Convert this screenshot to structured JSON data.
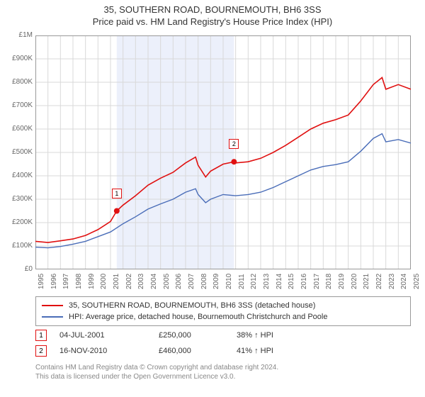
{
  "title_line1": "35, SOUTHERN ROAD, BOURNEMOUTH, BH6 3SS",
  "title_line2": "Price paid vs. HM Land Registry's House Price Index (HPI)",
  "chart": {
    "type": "line",
    "background_color": "#ffffff",
    "grid_color": "#d9d9d9",
    "highlight_band_color": "#ecf0fb",
    "highlight_band_x": {
      "start": 2001.5,
      "end": 2010.87
    },
    "xlim": [
      1995,
      2025
    ],
    "ylim": [
      0,
      1000000
    ],
    "x_ticks": [
      1995,
      1996,
      1997,
      1998,
      1999,
      2000,
      2001,
      2002,
      2003,
      2004,
      2005,
      2006,
      2007,
      2008,
      2009,
      2010,
      2011,
      2012,
      2013,
      2014,
      2015,
      2016,
      2017,
      2018,
      2019,
      2020,
      2021,
      2022,
      2023,
      2024,
      2025
    ],
    "y_ticks": [
      0,
      100000,
      200000,
      300000,
      400000,
      500000,
      600000,
      700000,
      800000,
      900000,
      1000000
    ],
    "y_tick_labels": [
      "£0",
      "£100K",
      "£200K",
      "£300K",
      "£400K",
      "£500K",
      "£600K",
      "£700K",
      "£800K",
      "£900K",
      "£1M"
    ],
    "series": [
      {
        "name": "35, SOUTHERN ROAD, BOURNEMOUTH, BH6 3SS (detached house)",
        "color": "#e01010",
        "line_width": 1.6,
        "data": [
          [
            1995,
            120000
          ],
          [
            1996,
            115000
          ],
          [
            1997,
            122000
          ],
          [
            1998,
            130000
          ],
          [
            1999,
            145000
          ],
          [
            2000,
            170000
          ],
          [
            2001,
            205000
          ],
          [
            2001.5,
            250000
          ],
          [
            2002,
            275000
          ],
          [
            2003,
            315000
          ],
          [
            2004,
            360000
          ],
          [
            2005,
            390000
          ],
          [
            2006,
            415000
          ],
          [
            2007,
            455000
          ],
          [
            2007.8,
            480000
          ],
          [
            2008,
            445000
          ],
          [
            2008.6,
            395000
          ],
          [
            2009,
            420000
          ],
          [
            2010,
            450000
          ],
          [
            2010.87,
            460000
          ],
          [
            2011,
            455000
          ],
          [
            2012,
            460000
          ],
          [
            2013,
            475000
          ],
          [
            2014,
            500000
          ],
          [
            2015,
            530000
          ],
          [
            2016,
            565000
          ],
          [
            2017,
            600000
          ],
          [
            2018,
            625000
          ],
          [
            2019,
            640000
          ],
          [
            2020,
            660000
          ],
          [
            2021,
            720000
          ],
          [
            2022,
            790000
          ],
          [
            2022.7,
            820000
          ],
          [
            2023,
            770000
          ],
          [
            2024,
            790000
          ],
          [
            2025,
            770000
          ]
        ]
      },
      {
        "name": "HPI: Average price, detached house, Bournemouth Christchurch and Poole",
        "color": "#4a6db8",
        "line_width": 1.4,
        "data": [
          [
            1995,
            95000
          ],
          [
            1996,
            92000
          ],
          [
            1997,
            98000
          ],
          [
            1998,
            108000
          ],
          [
            1999,
            120000
          ],
          [
            2000,
            140000
          ],
          [
            2001,
            160000
          ],
          [
            2002,
            195000
          ],
          [
            2003,
            225000
          ],
          [
            2004,
            258000
          ],
          [
            2005,
            280000
          ],
          [
            2006,
            300000
          ],
          [
            2007,
            330000
          ],
          [
            2007.8,
            345000
          ],
          [
            2008,
            320000
          ],
          [
            2008.6,
            285000
          ],
          [
            2009,
            300000
          ],
          [
            2010,
            320000
          ],
          [
            2011,
            315000
          ],
          [
            2012,
            320000
          ],
          [
            2013,
            330000
          ],
          [
            2014,
            350000
          ],
          [
            2015,
            375000
          ],
          [
            2016,
            400000
          ],
          [
            2017,
            425000
          ],
          [
            2018,
            440000
          ],
          [
            2019,
            448000
          ],
          [
            2020,
            460000
          ],
          [
            2021,
            505000
          ],
          [
            2022,
            560000
          ],
          [
            2022.7,
            580000
          ],
          [
            2023,
            545000
          ],
          [
            2024,
            555000
          ],
          [
            2025,
            540000
          ]
        ]
      }
    ],
    "sale_markers": [
      {
        "label": "1",
        "x": 2001.5,
        "y": 250000,
        "color": "#e01010"
      },
      {
        "label": "2",
        "x": 2010.87,
        "y": 460000,
        "color": "#e01010"
      }
    ]
  },
  "legend": {
    "items": [
      {
        "color": "#e01010",
        "label": "35, SOUTHERN ROAD, BOURNEMOUTH, BH6 3SS (detached house)"
      },
      {
        "color": "#4a6db8",
        "label": "HPI: Average price, detached house, Bournemouth Christchurch and Poole"
      }
    ]
  },
  "sales": [
    {
      "marker": "1",
      "marker_color": "#e01010",
      "date": "04-JUL-2001",
      "price": "£250,000",
      "diff": "38% ↑ HPI"
    },
    {
      "marker": "2",
      "marker_color": "#e01010",
      "date": "16-NOV-2010",
      "price": "£460,000",
      "diff": "41% ↑ HPI"
    }
  ],
  "footer_line1": "Contains HM Land Registry data © Crown copyright and database right 2024.",
  "footer_line2": "This data is licensed under the Open Government Licence v3.0."
}
